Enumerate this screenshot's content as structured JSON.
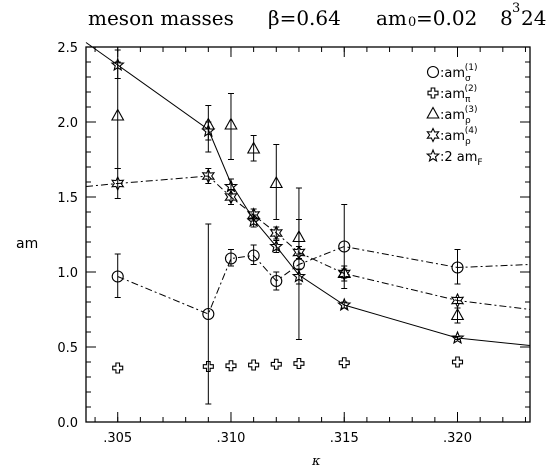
{
  "chart_data": {
    "type": "scatter",
    "title_parts": [
      "meson masses",
      "β=0.64",
      "am",
      "0",
      "=0.02",
      "8",
      "3",
      "24"
    ],
    "xlabel": "κ",
    "ylabel": "am",
    "xlim": [
      0.3036,
      0.3232
    ],
    "ylim": [
      0.0,
      2.5
    ],
    "x_ticks": [
      0.305,
      0.31,
      0.315,
      0.32
    ],
    "x_tick_labels": [
      ".305",
      ".310",
      ".315",
      ".320"
    ],
    "y_ticks": [
      0.0,
      0.5,
      1.0,
      1.5,
      2.0,
      2.5
    ],
    "y_tick_labels": [
      "0.0",
      "0.5",
      "1.0",
      "1.5",
      "2.0",
      "2.5"
    ],
    "legend": {
      "position": "top-right",
      "entries": [
        {
          "marker": "circle",
          "prefix": ":am",
          "sub": "σ",
          "sup": "(1)"
        },
        {
          "marker": "cross",
          "prefix": ":am",
          "sub": "π",
          "sup": "(2)"
        },
        {
          "marker": "triangle",
          "prefix": ":am",
          "sub": "ρ",
          "sup": "(3)"
        },
        {
          "marker": "star6",
          "prefix": ":am",
          "sub": "ρ",
          "sup": "(4)"
        },
        {
          "marker": "star5",
          "prefix": ":2 am",
          "sub": "F",
          "sup": ""
        }
      ]
    },
    "series": [
      {
        "marker": "circle",
        "points": [
          {
            "x": 0.305,
            "y": 0.97,
            "lo": 0.83,
            "hi": 1.12
          },
          {
            "x": 0.309,
            "y": 0.72,
            "lo": 0.12,
            "hi": 1.32
          },
          {
            "x": 0.31,
            "y": 1.09,
            "lo": 1.04,
            "hi": 1.15
          },
          {
            "x": 0.311,
            "y": 1.11,
            "lo": 1.05,
            "hi": 1.18
          },
          {
            "x": 0.312,
            "y": 0.94,
            "lo": 0.88,
            "hi": 1.0
          },
          {
            "x": 0.313,
            "y": 1.05,
            "lo": 0.55,
            "hi": 1.56
          },
          {
            "x": 0.315,
            "y": 1.17,
            "lo": 0.89,
            "hi": 1.45
          },
          {
            "x": 0.32,
            "y": 1.03,
            "lo": 0.92,
            "hi": 1.15
          }
        ]
      },
      {
        "marker": "cross",
        "points": [
          {
            "x": 0.305,
            "y": 0.36
          },
          {
            "x": 0.309,
            "y": 0.37
          },
          {
            "x": 0.31,
            "y": 0.375
          },
          {
            "x": 0.311,
            "y": 0.38
          },
          {
            "x": 0.312,
            "y": 0.385
          },
          {
            "x": 0.313,
            "y": 0.39
          },
          {
            "x": 0.315,
            "y": 0.395
          },
          {
            "x": 0.32,
            "y": 0.4
          }
        ]
      },
      {
        "marker": "triangle",
        "points": [
          {
            "x": 0.305,
            "y": 2.04,
            "lo": 1.69,
            "hi": 2.4
          },
          {
            "x": 0.309,
            "y": 1.98,
            "lo": 1.8,
            "hi": 2.11
          },
          {
            "x": 0.31,
            "y": 1.98,
            "lo": 1.75,
            "hi": 2.19
          },
          {
            "x": 0.311,
            "y": 1.82,
            "lo": 1.74,
            "hi": 1.91
          },
          {
            "x": 0.312,
            "y": 1.59,
            "lo": 1.35,
            "hi": 1.85
          },
          {
            "x": 0.313,
            "y": 1.23,
            "lo": 1.12,
            "hi": 1.35
          },
          {
            "x": 0.315,
            "y": 0.99,
            "lo": 0.94,
            "hi": 1.04
          },
          {
            "x": 0.32,
            "y": 0.71,
            "lo": 0.66,
            "hi": 0.76
          }
        ]
      },
      {
        "marker": "star6",
        "points": [
          {
            "x": 0.305,
            "y": 1.59,
            "lo": 1.49,
            "hi": 1.69
          },
          {
            "x": 0.309,
            "y": 1.64,
            "lo": 1.59,
            "hi": 1.69
          },
          {
            "x": 0.31,
            "y": 1.5,
            "lo": 1.45,
            "hi": 1.55
          },
          {
            "x": 0.311,
            "y": 1.38,
            "lo": 1.34,
            "hi": 1.42
          },
          {
            "x": 0.312,
            "y": 1.26,
            "lo": 1.22,
            "hi": 1.3
          },
          {
            "x": 0.313,
            "y": 1.13,
            "lo": 1.09,
            "hi": 1.17
          },
          {
            "x": 0.315,
            "y": 0.99,
            "lo": 0.96,
            "hi": 1.02
          },
          {
            "x": 0.32,
            "y": 0.81,
            "lo": 0.79,
            "hi": 0.83
          }
        ]
      },
      {
        "marker": "star5",
        "points": [
          {
            "x": 0.305,
            "y": 2.38,
            "lo": 2.29,
            "hi": 2.48
          },
          {
            "x": 0.309,
            "y": 1.94,
            "lo": 1.88,
            "hi": 2.0
          },
          {
            "x": 0.31,
            "y": 1.57,
            "lo": 1.52,
            "hi": 1.62
          },
          {
            "x": 0.311,
            "y": 1.34,
            "lo": 1.3,
            "hi": 1.38
          },
          {
            "x": 0.312,
            "y": 1.17,
            "lo": 1.13,
            "hi": 1.21
          },
          {
            "x": 0.313,
            "y": 0.97,
            "lo": 0.92,
            "hi": 1.02
          },
          {
            "x": 0.315,
            "y": 0.78,
            "lo": 0.76,
            "hi": 0.8
          },
          {
            "x": 0.32,
            "y": 0.56,
            "lo": 0.55,
            "hi": 0.57
          }
        ]
      }
    ],
    "fit_lines": [
      {
        "style": "solid",
        "points": [
          [
            0.3036,
            2.53
          ],
          [
            0.305,
            2.38
          ],
          [
            0.309,
            1.95
          ],
          [
            0.31,
            1.59
          ],
          [
            0.311,
            1.35
          ],
          [
            0.312,
            1.17
          ],
          [
            0.313,
            0.98
          ],
          [
            0.315,
            0.78
          ],
          [
            0.32,
            0.56
          ],
          [
            0.3232,
            0.51
          ]
        ]
      },
      {
        "style": "dashdot",
        "points": [
          [
            0.3036,
            1.57
          ],
          [
            0.305,
            1.59
          ],
          [
            0.309,
            1.64
          ],
          [
            0.31,
            1.5
          ],
          [
            0.311,
            1.38
          ],
          [
            0.312,
            1.26
          ],
          [
            0.313,
            1.13
          ],
          [
            0.315,
            0.99
          ],
          [
            0.32,
            0.81
          ],
          [
            0.3232,
            0.75
          ]
        ]
      },
      {
        "style": "dashdot",
        "points": [
          [
            0.305,
            0.97
          ],
          [
            0.309,
            0.72
          ],
          [
            0.31,
            1.09
          ],
          [
            0.311,
            1.11
          ],
          [
            0.312,
            0.94
          ],
          [
            0.313,
            1.05
          ],
          [
            0.315,
            1.17
          ],
          [
            0.32,
            1.03
          ],
          [
            0.3232,
            1.05
          ]
        ]
      }
    ]
  }
}
